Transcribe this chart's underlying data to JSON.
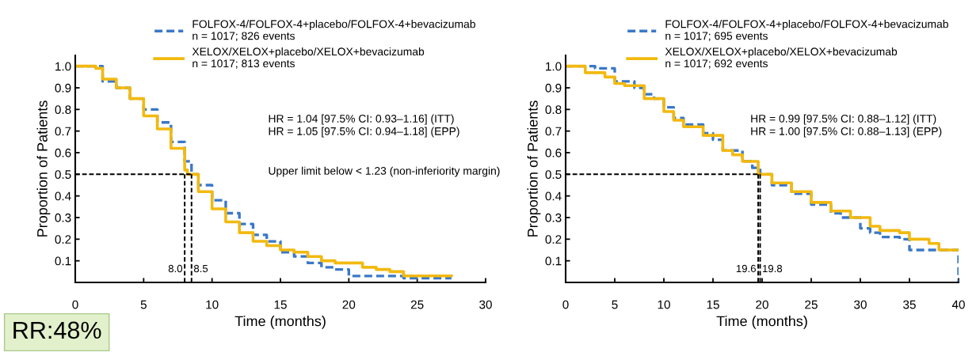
{
  "chart_data": [
    {
      "type": "step",
      "xlabel": "Time (months)",
      "ylabel": "Proportion of Patients",
      "xlim": [
        0,
        30
      ],
      "xticks": [
        0,
        5,
        10,
        15,
        20,
        25,
        30
      ],
      "ylim": [
        0,
        1.05
      ],
      "yticks": [
        0.1,
        0.2,
        0.3,
        0.4,
        0.5,
        0.6,
        0.7,
        0.8,
        0.9,
        {
          "value": 1.0,
          "label": "1.0"
        }
      ],
      "grid": false,
      "legend": "top right",
      "series": [
        {
          "name": "FOLFOX-4/FOLFOX-4+placebo/FOLFOX-4+bevacizumab\nn = 1017; 826 events",
          "color": "#3a78c8",
          "line_style": "dashed",
          "x": [
            0,
            1.5,
            2,
            3,
            4,
            5,
            6,
            7,
            8,
            8.5,
            9,
            10,
            11,
            12,
            13,
            14,
            15,
            16,
            17,
            18,
            19,
            20,
            22,
            24,
            27.5
          ],
          "values": [
            1.0,
            1.0,
            0.93,
            0.9,
            0.85,
            0.8,
            0.74,
            0.65,
            0.56,
            0.5,
            0.45,
            0.38,
            0.32,
            0.27,
            0.22,
            0.19,
            0.14,
            0.12,
            0.09,
            0.07,
            0.06,
            0.03,
            0.03,
            0.02,
            0.02
          ]
        },
        {
          "name": "XELOX/XELOX+placebo/XELOX+bevacizumab\nn = 1017; 813 events",
          "color": "#f2b90f",
          "line_style": "solid",
          "x": [
            0,
            1.5,
            2,
            3,
            4,
            5,
            6,
            7,
            8,
            8.2,
            9,
            10,
            11,
            12,
            13,
            14,
            15,
            16,
            17,
            18,
            19,
            20,
            21,
            22,
            23,
            24,
            27.5
          ],
          "values": [
            1.0,
            0.99,
            0.94,
            0.9,
            0.85,
            0.77,
            0.71,
            0.62,
            0.52,
            0.5,
            0.42,
            0.34,
            0.28,
            0.23,
            0.19,
            0.17,
            0.15,
            0.14,
            0.12,
            0.1,
            0.09,
            0.09,
            0.07,
            0.06,
            0.05,
            0.03,
            0.03
          ]
        }
      ],
      "ref_lines": [
        {
          "axis": "y",
          "value": 0.5,
          "color": "#000000",
          "line_style": "dashed"
        },
        {
          "axis": "x",
          "value": 8.0,
          "label": "8.0",
          "color": "#000000",
          "line_style": "dashed"
        },
        {
          "axis": "x",
          "value": 8.5,
          "label": "8.5",
          "color": "#000000",
          "line_style": "dashed"
        }
      ],
      "annotations": [
        "HR = 1.04 [97.5% CI: 0.93–1.16] (ITT)\nHR = 1.05 [97.5% CI: 0.94–1.18] (EPP)",
        "Upper limit below < 1.23 (non-inferiority margin)"
      ]
    },
    {
      "type": "step",
      "xlabel": "Time (months)",
      "ylabel": "Proportion of Patients",
      "xlim": [
        0,
        40
      ],
      "xticks": [
        0,
        5,
        10,
        15,
        20,
        25,
        30,
        35,
        40
      ],
      "ylim": [
        0,
        1.05
      ],
      "yticks": [
        0.1,
        0.2,
        0.3,
        0.4,
        0.5,
        0.6,
        0.7,
        0.8,
        0.9,
        {
          "value": 1.0,
          "label": "1.0"
        }
      ],
      "grid": false,
      "legend": "top right",
      "series": [
        {
          "name": "FOLFOX-4/FOLFOX-4+placebo/FOLFOX-4+bevacizumab\nn = 1017; 695 events",
          "color": "#3a78c8",
          "line_style": "dashed",
          "x": [
            0,
            3,
            5,
            7,
            8,
            9,
            10,
            11,
            12,
            14,
            15,
            16,
            18,
            19,
            19.8,
            21,
            23,
            25,
            27,
            28,
            30,
            31,
            32,
            34,
            35,
            38,
            40,
            40
          ],
          "values": [
            1.0,
            0.99,
            0.93,
            0.9,
            0.87,
            0.85,
            0.81,
            0.76,
            0.73,
            0.69,
            0.66,
            0.61,
            0.56,
            0.53,
            0.5,
            0.45,
            0.41,
            0.36,
            0.32,
            0.3,
            0.25,
            0.23,
            0.21,
            0.2,
            0.15,
            0.15,
            0.15,
            0.0
          ]
        },
        {
          "name": "XELOX/XELOX+placebo/XELOX+bevacizumab\nn = 1017; 692 events",
          "color": "#f2b90f",
          "line_style": "solid",
          "x": [
            0,
            2,
            4,
            5,
            6,
            8,
            10,
            11,
            12,
            14,
            16,
            17,
            18,
            19.6,
            21,
            23,
            25,
            27,
            29,
            31,
            32,
            34,
            35,
            37,
            38,
            40
          ],
          "values": [
            1.0,
            0.97,
            0.95,
            0.92,
            0.91,
            0.85,
            0.79,
            0.75,
            0.72,
            0.68,
            0.61,
            0.59,
            0.56,
            0.5,
            0.46,
            0.42,
            0.37,
            0.33,
            0.3,
            0.26,
            0.24,
            0.23,
            0.2,
            0.18,
            0.15,
            0.15
          ]
        }
      ],
      "ref_lines": [
        {
          "axis": "y",
          "value": 0.5,
          "color": "#000000",
          "line_style": "dashed"
        },
        {
          "axis": "x",
          "value": 19.6,
          "label": "19.6",
          "color": "#000000",
          "line_style": "dashed"
        },
        {
          "axis": "x",
          "value": 19.8,
          "label": "19.8",
          "color": "#000000",
          "line_style": "dashed"
        }
      ],
      "annotations": [
        "HR = 0.99 [97.5% CI: 0.88–1.12] (ITT)\nHR = 1.00 [97.5% CI: 0.88–1.13] (EPP)"
      ]
    },
    {
      "type": "other",
      "annotations": [
        "RR:48%"
      ]
    }
  ]
}
